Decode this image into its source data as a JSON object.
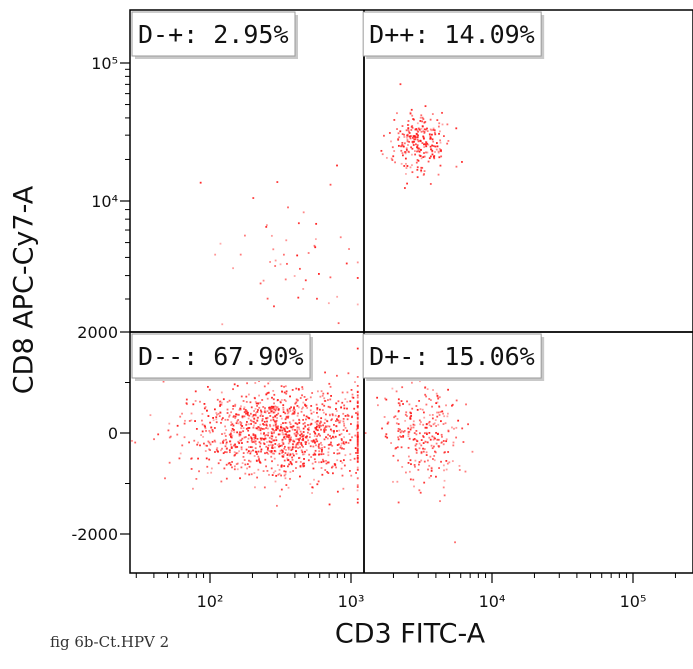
{
  "caption": "fig 6b-Ct.HPV 2",
  "chart_data": {
    "type": "scatter",
    "plot_kind": "flow cytometry quadrant dot plot",
    "xlabel": "CD3 FITC-A",
    "ylabel": "CD8 APC-Cy7-A",
    "x_scale": "biexponential (log with linear region near 0)",
    "y_scale": "biexponential (linear near 0, log above)",
    "x_range": [
      25,
      400000
    ],
    "y_range": [
      -2600,
      160000
    ],
    "x_ticks": [
      {
        "value": 100,
        "label": "10²"
      },
      {
        "value": 1000,
        "label": "10³"
      },
      {
        "value": 10000,
        "label": "10⁴"
      },
      {
        "value": 100000,
        "label": "10⁵"
      }
    ],
    "y_ticks": [
      {
        "value": -2000,
        "label": "-2000"
      },
      {
        "value": 0,
        "label": "0"
      },
      {
        "value": 2000,
        "label": "2000"
      },
      {
        "value": 10000,
        "label": "10⁴"
      },
      {
        "value": 100000,
        "label": "10⁵"
      }
    ],
    "gate": {
      "x": 1200,
      "y": 2000
    },
    "point_color": "#ff1a1a",
    "quadrants": [
      {
        "label": "D-+",
        "percent": "2.95%",
        "text": "D-+: 2.95%",
        "position": "top-left"
      },
      {
        "label": "D++",
        "percent": "14.09%",
        "text": "D++: 14.09%",
        "position": "top-right"
      },
      {
        "label": "D--",
        "percent": "67.90%",
        "text": "D--: 67.90%",
        "position": "bottom-left"
      },
      {
        "label": "D+-",
        "percent": "15.06%",
        "text": "D+-: 15.06%",
        "position": "bottom-right"
      }
    ],
    "populations": [
      {
        "quadrant": "D--",
        "n": 1250,
        "x_center": 330,
        "x_log_sd": 0.33,
        "y_center": 0,
        "y_sd": 450,
        "x_min": 25,
        "x_max": 1100
      },
      {
        "quadrant": "D+-",
        "n": 280,
        "x_center": 3300,
        "x_log_sd": 0.14,
        "y_center": 0,
        "y_sd": 520,
        "x_min": 1250,
        "x_max": 9000
      },
      {
        "quadrant": "D++",
        "n": 260,
        "x_center": 3000,
        "x_log_sd": 0.09,
        "y_center": 27000,
        "y_log_sd": 0.11,
        "x_min": 1300,
        "x_max": 8000
      },
      {
        "quadrant": "D-+",
        "n": 55,
        "x_center": 350,
        "x_log_sd": 0.3,
        "y_center": 5000,
        "y_log_sd": 0.25,
        "x_min": 70,
        "x_max": 1100
      }
    ]
  }
}
